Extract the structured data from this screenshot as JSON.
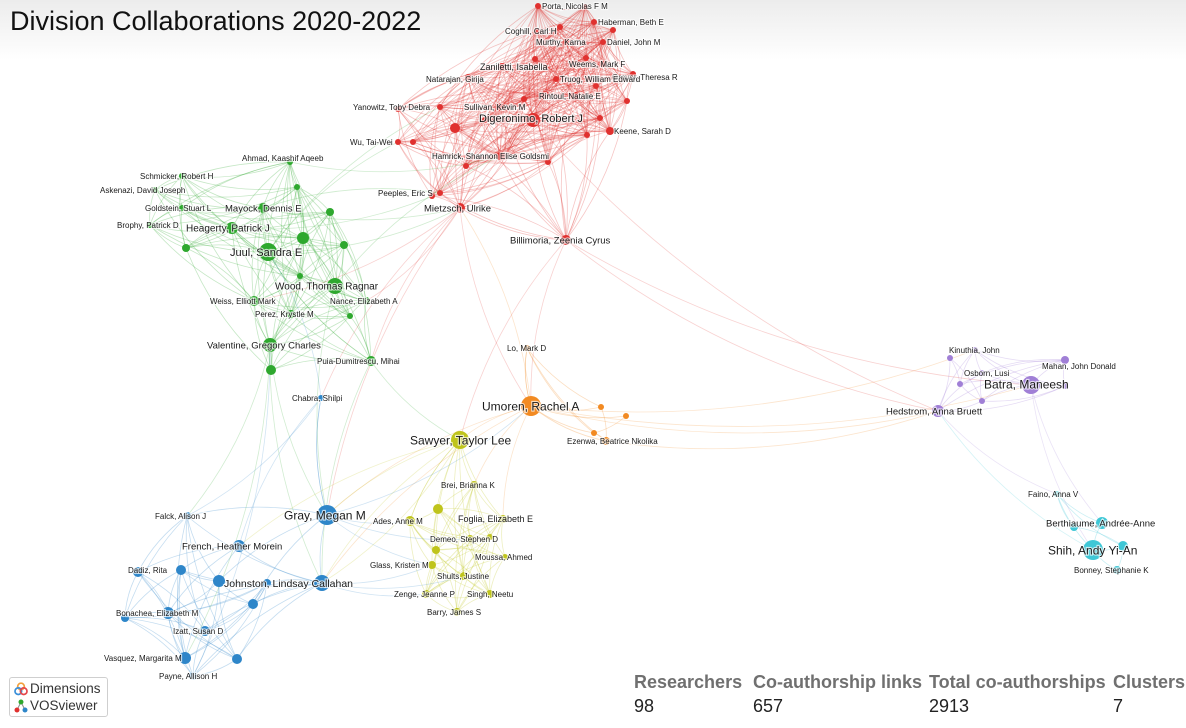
{
  "title": "Division Collaborations 2020-2022",
  "colors": {
    "red": "#e0312f",
    "green": "#2ea82e",
    "blue": "#2e86c9",
    "yellow": "#bfc41c",
    "orange": "#f28a22",
    "purple": "#a07fd6",
    "cyan": "#3fc7d6"
  },
  "nodes": [
    {
      "id": "porta",
      "label": "Porta, Nicolas F M",
      "c": "red",
      "s": 3
    },
    {
      "id": "haberman",
      "label": "Haberman, Beth E",
      "c": "red",
      "s": 3
    },
    {
      "id": "coghill",
      "label": "Coghill, Carl H",
      "c": "red",
      "s": 3
    },
    {
      "id": "murthy",
      "label": "Murthy, Karna",
      "c": "red",
      "s": 3
    },
    {
      "id": "daniel",
      "label": "Daniel, John M",
      "c": "red",
      "s": 3
    },
    {
      "id": "zaniletti",
      "label": "Zaniletti, Isabella",
      "c": "red",
      "s": 4
    },
    {
      "id": "weems",
      "label": "Weems, Mark F",
      "c": "red",
      "s": 3
    },
    {
      "id": "grover",
      "label": "Grover, Theresa R",
      "c": "red",
      "s": 3
    },
    {
      "id": "natarajan",
      "label": "Natarajan, Girija",
      "c": "red",
      "s": 3
    },
    {
      "id": "truog",
      "label": "Truog, William Edward",
      "c": "red",
      "s": 3
    },
    {
      "id": "rintoul",
      "label": "Rintoul, Natalie E",
      "c": "red",
      "s": 4
    },
    {
      "id": "yanowitz",
      "label": "Yanowitz, Toby Debra",
      "c": "red",
      "s": 3
    },
    {
      "id": "sullivan",
      "label": "Sullivan, Kevin M",
      "c": "red",
      "s": 4
    },
    {
      "id": "digeronimo",
      "label": "Digeronimo, Robert J",
      "c": "red",
      "s": 7
    },
    {
      "id": "keene",
      "label": "Keene, Sarah D",
      "c": "red",
      "s": 4
    },
    {
      "id": "wu",
      "label": "Wu, Tai-Wei",
      "c": "red",
      "s": 3
    },
    {
      "id": "hamrick",
      "label": "Hamrick, Shannon Elise Goldsmi",
      "c": "red",
      "s": 4
    },
    {
      "id": "peeples",
      "label": "Peeples, Eric S",
      "c": "red",
      "s": 3
    },
    {
      "id": "mietzsch",
      "label": "Mietzsch, Ulrike",
      "c": "red",
      "s": 5
    },
    {
      "id": "billimoria",
      "label": "Billimoria, Zeenia Cyrus",
      "c": "red",
      "s": 5
    },
    {
      "id": "schmicker",
      "label": "Schmicker, Robert H",
      "c": "green",
      "s": 3
    },
    {
      "id": "ahmad",
      "label": "Ahmad, Kaashif Aqeeb",
      "c": "green",
      "s": 3
    },
    {
      "id": "askenazi",
      "label": "Askenazi, David Joseph",
      "c": "green",
      "s": 3
    },
    {
      "id": "goldstein",
      "label": "Goldstein, Stuart L",
      "c": "green",
      "s": 3
    },
    {
      "id": "mayock",
      "label": "Mayock, Dennis E",
      "c": "green",
      "s": 5
    },
    {
      "id": "brophy",
      "label": "Brophy, Patrick D",
      "c": "green",
      "s": 3
    },
    {
      "id": "heagerty",
      "label": "Heagerty, Patrick J",
      "c": "green",
      "s": 6
    },
    {
      "id": "juul",
      "label": "Juul, Sandra E",
      "c": "green",
      "s": 9
    },
    {
      "id": "wood",
      "label": "Wood, Thomas Ragnar",
      "c": "green",
      "s": 8
    },
    {
      "id": "weiss",
      "label": "Weiss, Elliott Mark",
      "c": "green",
      "s": 5
    },
    {
      "id": "nance",
      "label": "Nance, Elizabeth A",
      "c": "green",
      "s": 4
    },
    {
      "id": "perez",
      "label": "Perez, Krystle M",
      "c": "green",
      "s": 4
    },
    {
      "id": "valentine",
      "label": "Valentine, Gregory Charles",
      "c": "green",
      "s": 7
    },
    {
      "id": "puia",
      "label": "Puia-Dumitrescu, Mihai",
      "c": "green",
      "s": 5
    },
    {
      "id": "chabra",
      "label": "Chabra, Shilpi",
      "c": "blue",
      "s": 3
    },
    {
      "id": "lo",
      "label": "Lo, Mark D",
      "c": "orange",
      "s": 3
    },
    {
      "id": "umoren",
      "label": "Umoren, Rachel A",
      "c": "orange",
      "s": 10
    },
    {
      "id": "ezenwa",
      "label": "Ezenwa, Beatrice Nkolika",
      "c": "orange",
      "s": 4
    },
    {
      "id": "kinuthia",
      "label": "Kinuthia, John",
      "c": "purple",
      "s": 3
    },
    {
      "id": "mahan",
      "label": "Mahan, John Donald",
      "c": "purple",
      "s": 4
    },
    {
      "id": "osborn",
      "label": "Osborn, Lusi",
      "c": "purple",
      "s": 3
    },
    {
      "id": "batra",
      "label": "Batra, Maneesh",
      "c": "purple",
      "s": 9
    },
    {
      "id": "hedstrom",
      "label": "Hedstrom, Anna Bruett",
      "c": "purple",
      "s": 6
    },
    {
      "id": "sawyer",
      "label": "Sawyer, Taylor Lee",
      "c": "yellow",
      "s": 9
    },
    {
      "id": "brei",
      "label": "Brei, Brianna K",
      "c": "yellow",
      "s": 4
    },
    {
      "id": "gray",
      "label": "Gray, Megan M",
      "c": "blue",
      "s": 10
    },
    {
      "id": "falck",
      "label": "Falck, Alison J",
      "c": "blue",
      "s": 4
    },
    {
      "id": "ades",
      "label": "Ades, Anne M",
      "c": "yellow",
      "s": 5
    },
    {
      "id": "foglia",
      "label": "Foglia, Elizabeth E",
      "c": "yellow",
      "s": 4
    },
    {
      "id": "french",
      "label": "French, Heather Morein",
      "c": "blue",
      "s": 6
    },
    {
      "id": "demeo",
      "label": "Demeo, Stephen D",
      "c": "yellow",
      "s": 4
    },
    {
      "id": "dadiz",
      "label": "Dadiz, Rita",
      "c": "blue",
      "s": 5
    },
    {
      "id": "moussa",
      "label": "Moussa, Ahmed",
      "c": "yellow",
      "s": 3
    },
    {
      "id": "glass",
      "label": "Glass, Kristen M",
      "c": "yellow",
      "s": 4
    },
    {
      "id": "johnston",
      "label": "Johnston, Lindsay Callahan",
      "c": "blue",
      "s": 8
    },
    {
      "id": "shults",
      "label": "Shults, Justine",
      "c": "yellow",
      "s": 4
    },
    {
      "id": "zenge",
      "label": "Zenge, Jeanne P",
      "c": "yellow",
      "s": 4
    },
    {
      "id": "singh",
      "label": "Singh, Neetu",
      "c": "yellow",
      "s": 4
    },
    {
      "id": "bonachea",
      "label": "Bonachea, Elizabeth M",
      "c": "blue",
      "s": 6
    },
    {
      "id": "barry",
      "label": "Barry, James S",
      "c": "yellow",
      "s": 4
    },
    {
      "id": "izatt",
      "label": "Izatt, Susan D",
      "c": "blue",
      "s": 5
    },
    {
      "id": "vasquez",
      "label": "Vasquez, Margarita M",
      "c": "blue",
      "s": 6
    },
    {
      "id": "payne",
      "label": "Payne, Allison H",
      "c": "blue",
      "s": 4
    },
    {
      "id": "faino",
      "label": "Faino, Anna V",
      "c": "cyan",
      "s": 3
    },
    {
      "id": "berthiaume",
      "label": "Berthiaume, Andrée-Anne",
      "c": "cyan",
      "s": 6
    },
    {
      "id": "shih",
      "label": "Shih, Andy Yi-An",
      "c": "cyan",
      "s": 10
    },
    {
      "id": "bonney",
      "label": "Bonney, Stephanie K",
      "c": "cyan",
      "s": 4
    }
  ],
  "branding": {
    "dimensions": "Dimensions",
    "vosviewer": "VOSviewer"
  },
  "stats": [
    {
      "label": "Researchers",
      "value": "98"
    },
    {
      "label": "Co-authorship links",
      "value": "657"
    },
    {
      "label": "Total co-authorships",
      "value": "2913"
    },
    {
      "label": "Clusters",
      "value": "7"
    }
  ]
}
